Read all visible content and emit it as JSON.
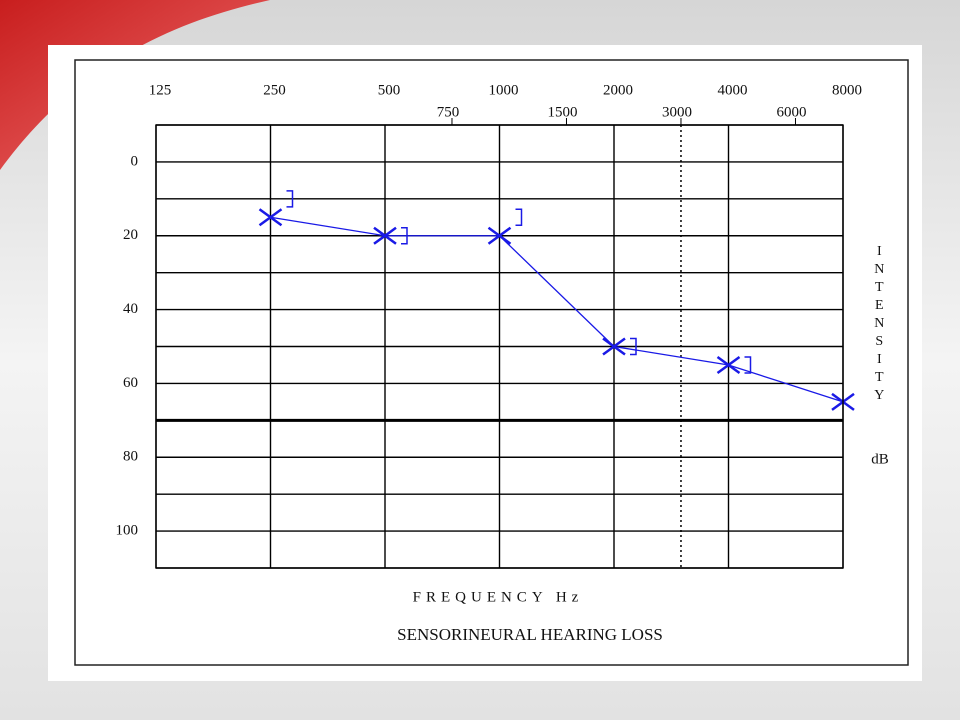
{
  "chart_data": {
    "type": "line",
    "title": "SENSORINEURAL  HEARING LOSS",
    "xlabel": "FREQUENCY Hz",
    "ylabel": "INTENSITY",
    "yunit": "dB",
    "x": [
      250,
      500,
      1000,
      2000,
      4000,
      8000
    ],
    "series": [
      {
        "marker": "x",
        "color": "#1a1ae6",
        "values": [
          15,
          20,
          20,
          50,
          55,
          65
        ]
      },
      {
        "marker": "bracket",
        "color": "#1a1ae6",
        "values": [
          10,
          20,
          15,
          50,
          55,
          null
        ]
      }
    ],
    "xscale": "log",
    "xlim": [
      125,
      8000
    ],
    "xticks": [
      125,
      250,
      500,
      1000,
      2000,
      4000,
      8000
    ],
    "xticks_minor": [
      750,
      1500,
      3000,
      6000
    ],
    "xticks_minor_grid": [
      false,
      false,
      true,
      false
    ],
    "ylim": [
      -10,
      110
    ],
    "yinverted": true,
    "yticks": [
      0,
      20,
      40,
      60,
      80,
      100
    ],
    "ygrid": [
      -10,
      0,
      10,
      20,
      30,
      40,
      50,
      60,
      70,
      80,
      90,
      100,
      110
    ],
    "reference_line": 70,
    "grid": true
  }
}
